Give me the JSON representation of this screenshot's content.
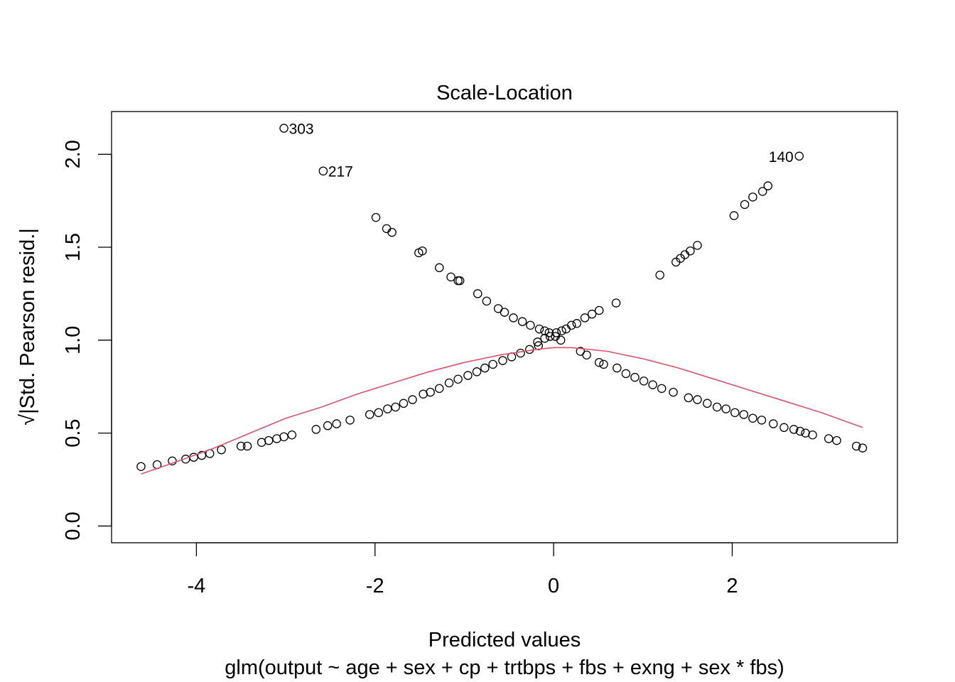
{
  "chart_data": {
    "type": "scatter",
    "title": "Scale-Location",
    "xlabel": "Predicted values",
    "subtitle": "glm(output ~ age + sex + cp + trtbps + fbs + exng + sex * fbs)",
    "ylabel": "√|Std. Pearson resid.|",
    "xlim": [
      -4.95,
      3.85
    ],
    "ylim": [
      -0.09,
      2.23
    ],
    "x_ticks": [
      -4,
      -2,
      0,
      2
    ],
    "x_tick_labels": [
      "-4",
      "-2",
      "0",
      "2"
    ],
    "y_ticks": [
      0.0,
      0.5,
      1.0,
      1.5,
      2.0
    ],
    "y_tick_labels": [
      "0.0",
      "0.5",
      "1.0",
      "1.5",
      "2.0"
    ],
    "grid": false,
    "legend": "none",
    "colors": {
      "points": "#000000",
      "smooth": "#DF536B",
      "frame": "#000000"
    },
    "series": [
      {
        "kind": "points",
        "x": [
          -3.02,
          -2.58,
          -1.99,
          -1.87,
          -1.81,
          -1.51,
          -1.47,
          -1.28,
          -1.15,
          -1.07,
          -1.05,
          -0.85,
          -0.75,
          -0.62,
          -0.55,
          -0.45,
          -0.35,
          -0.26,
          -0.16,
          -0.1,
          -0.05,
          0.02,
          0.08,
          2.75,
          2.4,
          2.34,
          2.23,
          2.14,
          2.02,
          1.61,
          1.53,
          1.47,
          1.42,
          1.37,
          1.19,
          0.7,
          0.51,
          0.43,
          0.35,
          0.26,
          0.2,
          0.14,
          0.09,
          0.03,
          -0.04,
          -0.1,
          -0.18,
          -4.62,
          -4.44,
          -4.27,
          -4.12,
          -4.03,
          -3.94,
          -3.85,
          -3.72,
          -3.5,
          -3.43,
          -3.27,
          -3.19,
          -3.1,
          -3.02,
          -2.93,
          -2.66,
          -2.53,
          -2.43,
          -2.28,
          -2.06,
          -1.96,
          -1.86,
          -1.77,
          -1.68,
          -1.58,
          -1.46,
          -1.38,
          -1.28,
          -1.17,
          -1.07,
          -0.96,
          -0.86,
          -0.77,
          -0.68,
          -0.57,
          -0.47,
          -0.37,
          -0.27,
          -0.17,
          0.3,
          0.37,
          0.51,
          0.56,
          0.71,
          0.81,
          0.91,
          1.01,
          1.11,
          1.21,
          1.34,
          1.51,
          1.61,
          1.72,
          1.83,
          1.93,
          2.03,
          2.13,
          2.23,
          2.33,
          2.46,
          2.58,
          2.69,
          2.76,
          2.82,
          2.9,
          3.08,
          3.17,
          3.39,
          3.46
        ],
        "y": [
          2.14,
          1.91,
          1.66,
          1.6,
          1.58,
          1.47,
          1.48,
          1.39,
          1.34,
          1.32,
          1.32,
          1.25,
          1.21,
          1.17,
          1.15,
          1.12,
          1.1,
          1.08,
          1.06,
          1.05,
          1.04,
          1.02,
          1.0,
          1.99,
          1.83,
          1.8,
          1.77,
          1.73,
          1.67,
          1.51,
          1.48,
          1.46,
          1.44,
          1.42,
          1.35,
          1.2,
          1.16,
          1.14,
          1.12,
          1.09,
          1.08,
          1.06,
          1.05,
          1.04,
          1.02,
          1.01,
          0.99,
          0.32,
          0.33,
          0.35,
          0.36,
          0.37,
          0.38,
          0.39,
          0.41,
          0.43,
          0.43,
          0.45,
          0.46,
          0.47,
          0.48,
          0.49,
          0.52,
          0.54,
          0.55,
          0.57,
          0.6,
          0.61,
          0.63,
          0.64,
          0.66,
          0.68,
          0.71,
          0.72,
          0.74,
          0.77,
          0.79,
          0.81,
          0.83,
          0.85,
          0.87,
          0.89,
          0.91,
          0.93,
          0.95,
          0.97,
          0.94,
          0.92,
          0.88,
          0.87,
          0.85,
          0.82,
          0.8,
          0.78,
          0.76,
          0.74,
          0.72,
          0.69,
          0.68,
          0.66,
          0.64,
          0.63,
          0.61,
          0.6,
          0.58,
          0.57,
          0.55,
          0.53,
          0.52,
          0.51,
          0.5,
          0.49,
          0.47,
          0.46,
          0.43,
          0.42
        ]
      },
      {
        "kind": "smooth",
        "x": [
          -4.62,
          -4.2,
          -3.8,
          -3.4,
          -3.0,
          -2.6,
          -2.2,
          -1.8,
          -1.4,
          -1.0,
          -0.6,
          -0.2,
          0.0,
          0.2,
          0.6,
          1.0,
          1.4,
          1.8,
          2.2,
          2.6,
          3.0,
          3.46
        ],
        "y": [
          0.28,
          0.35,
          0.42,
          0.5,
          0.58,
          0.64,
          0.71,
          0.77,
          0.83,
          0.88,
          0.92,
          0.95,
          0.96,
          0.96,
          0.94,
          0.9,
          0.85,
          0.79,
          0.73,
          0.67,
          0.61,
          0.53
        ]
      }
    ],
    "annotations": [
      {
        "text": "303",
        "x": -3.02,
        "y": 2.14,
        "side": "right"
      },
      {
        "text": "217",
        "x": -2.58,
        "y": 1.91,
        "side": "right"
      },
      {
        "text": "140",
        "x": 2.75,
        "y": 1.99,
        "side": "left"
      }
    ]
  }
}
